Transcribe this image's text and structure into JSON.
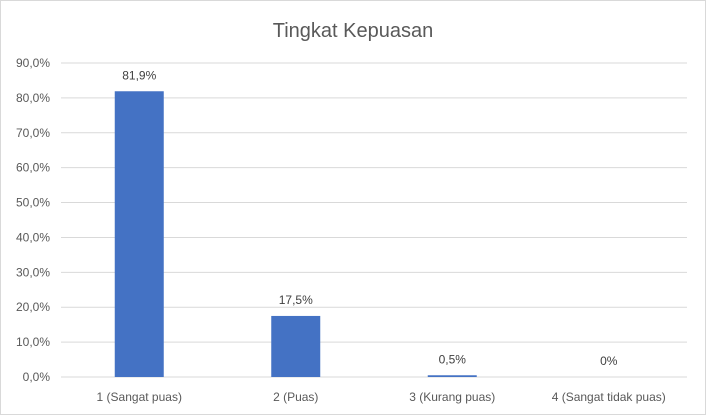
{
  "chart_data": {
    "type": "bar",
    "title": "Tingkat Kepuasan",
    "xlabel": "",
    "ylabel": "",
    "categories": [
      "1 (Sangat puas)",
      "2 (Puas)",
      "3 (Kurang puas)",
      "4 (Sangat tidak puas)"
    ],
    "values": [
      81.9,
      17.5,
      0.5,
      0
    ],
    "data_labels": [
      "81,9%",
      "17,5%",
      "0,5%",
      "0%"
    ],
    "ylim": [
      0,
      90
    ],
    "y_ticks": [
      0,
      10,
      20,
      30,
      40,
      50,
      60,
      70,
      80,
      90
    ],
    "y_tick_labels": [
      "0,0%",
      "10,0%",
      "20,0%",
      "30,0%",
      "40,0%",
      "50,0%",
      "60,0%",
      "70,0%",
      "80,0%",
      "90,0%"
    ],
    "grid": true,
    "legend": "none",
    "bar_color": "#4472c4"
  }
}
